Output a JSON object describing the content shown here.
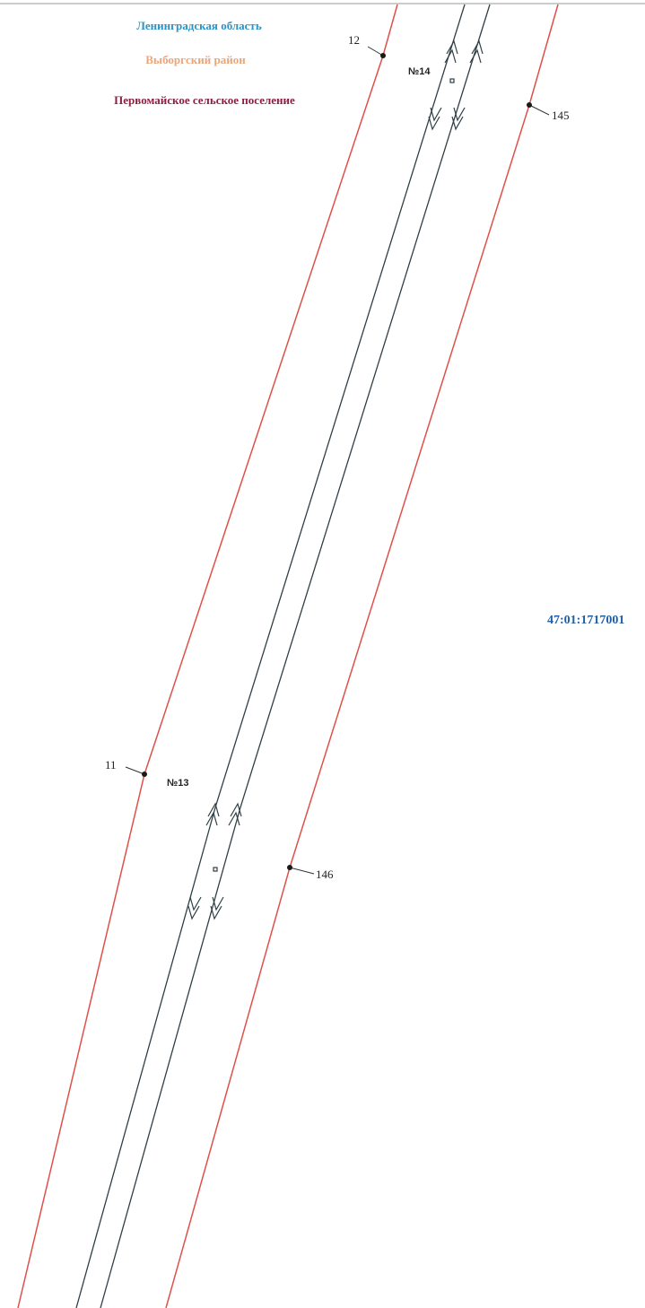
{
  "legend": {
    "region": "Ленинградская область",
    "district": "Выборгский район",
    "settlement": "Первомайское сельское поселение"
  },
  "points": [
    {
      "label": "12"
    },
    {
      "label": "145"
    },
    {
      "label": "11"
    },
    {
      "label": "146"
    }
  ],
  "objects": [
    {
      "label": "№14"
    },
    {
      "label": "№13"
    }
  ],
  "cadastral_block": "47:01:1717001"
}
